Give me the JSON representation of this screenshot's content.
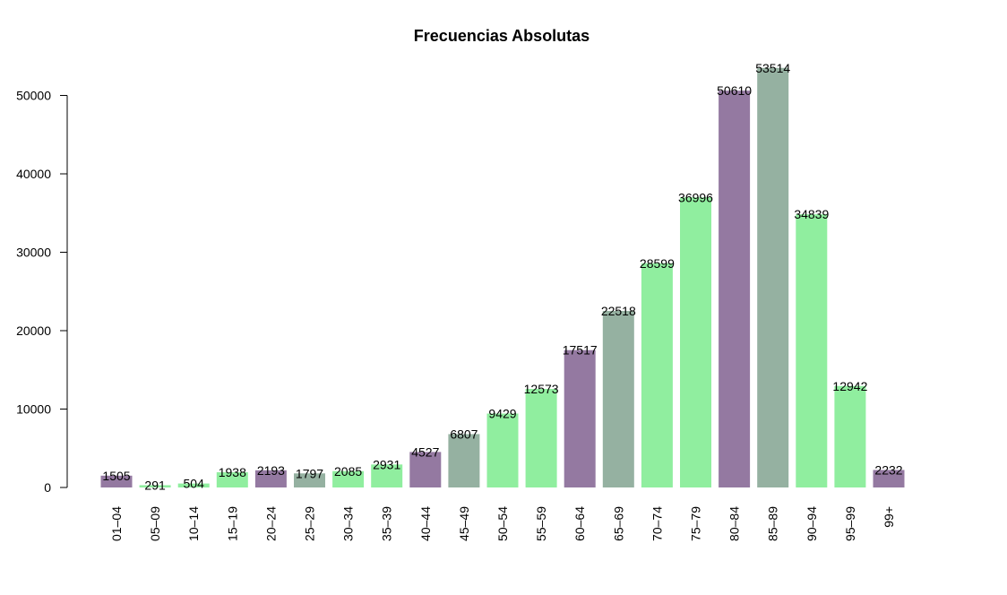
{
  "chart_data": {
    "type": "bar",
    "title": "Frecuencias Absolutas",
    "xlabel": "",
    "ylabel": "",
    "ylim": [
      0,
      53514
    ],
    "yticks": [
      0,
      10000,
      20000,
      30000,
      40000,
      50000
    ],
    "grid": false,
    "legend": "none",
    "categories": [
      "01–04",
      "05–09",
      "10–14",
      "15–19",
      "20–24",
      "25–29",
      "30–34",
      "35–39",
      "40–44",
      "45–49",
      "50–54",
      "55–59",
      "60–64",
      "65–69",
      "70–74",
      "75–79",
      "80–84",
      "85–89",
      "90–94",
      "95–99",
      "99+"
    ],
    "values": [
      1505,
      291,
      504,
      1938,
      2193,
      1797,
      2085,
      2931,
      4527,
      6807,
      9429,
      12573,
      17517,
      22518,
      28599,
      36996,
      50610,
      53514,
      34839,
      12942,
      2232
    ],
    "colors": [
      "#9479A1",
      "#90EE9F",
      "#90EE9F",
      "#90EE9F",
      "#9479A1",
      "#95B1A1",
      "#90EE9F",
      "#90EE9F",
      "#9479A1",
      "#95B1A1",
      "#90EE9F",
      "#90EE9F",
      "#9479A1",
      "#95B1A1",
      "#90EE9F",
      "#90EE9F",
      "#9479A1",
      "#95B1A1",
      "#90EE9F",
      "#90EE9F",
      "#9479A1"
    ]
  }
}
